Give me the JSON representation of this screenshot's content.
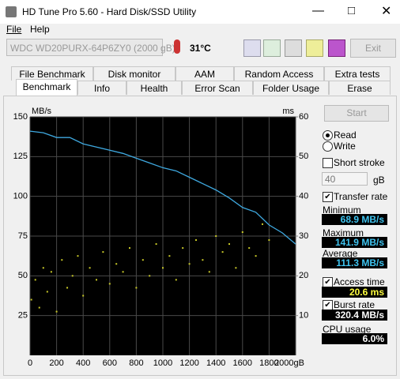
{
  "window": {
    "title": "HD Tune Pro 5.60 - Hard Disk/SSD Utility",
    "menu": [
      "File",
      "Help"
    ]
  },
  "toolbar": {
    "drive": "WDC WD20PURX-64P6ZY0 (2000 gB)",
    "temperature": "31°C",
    "exit": "Exit"
  },
  "tabs": {
    "row1": [
      "File Benchmark",
      "Disk monitor",
      "AAM",
      "Random Access",
      "Extra tests"
    ],
    "row2": [
      "Benchmark",
      "Info",
      "Health",
      "Error Scan",
      "Folder Usage",
      "Erase"
    ],
    "active": 0
  },
  "side": {
    "start": "Start",
    "radios": [
      {
        "label": "Read",
        "checked": true
      },
      {
        "label": "Write",
        "checked": false
      }
    ],
    "short_stroke": {
      "label": "Short stroke",
      "checked": false,
      "value": "40",
      "unit": "gB"
    },
    "transfer_rate": {
      "label": "Transfer rate",
      "checked": true
    },
    "stats": [
      {
        "label": "Minimum",
        "value": "68.9 MB/s"
      },
      {
        "label": "Maximum",
        "value": "141.9 MB/s"
      },
      {
        "label": "Average",
        "value": "111.3 MB/s"
      }
    ],
    "access_time": {
      "label": "Access time",
      "checked": true,
      "value": "20.6 ms"
    },
    "burst_rate": {
      "label": "Burst rate",
      "checked": true,
      "value": "320.4 MB/s"
    },
    "cpu": {
      "label": "CPU usage",
      "value": "6.0%"
    }
  },
  "chart_data": {
    "type": "line",
    "y_label": "MB/s",
    "y2_label": "ms",
    "xlim": [
      0,
      2000
    ],
    "xticks": [
      0,
      200,
      400,
      600,
      800,
      1000,
      1200,
      1400,
      1600,
      1800,
      {
        "value": 2000,
        "label": "2000gB"
      }
    ],
    "ylim": [
      0,
      150
    ],
    "yticks": [
      25,
      50,
      75,
      100,
      125,
      150
    ],
    "y2lim": [
      0,
      60
    ],
    "y2ticks": [
      10,
      20,
      30,
      40,
      50,
      60
    ],
    "grid": true,
    "series": [
      {
        "type": "line",
        "color": "#3fa9e0",
        "x": [
          0,
          100,
          200,
          300,
          400,
          500,
          600,
          700,
          800,
          900,
          1000,
          1100,
          1200,
          1300,
          1400,
          1500,
          1600,
          1700,
          1800,
          1900,
          2000
        ],
        "values": [
          141,
          140,
          137,
          137,
          133,
          131,
          129,
          127,
          124,
          121,
          118,
          116,
          112,
          108,
          104,
          99,
          93,
          90,
          82,
          77,
          70
        ]
      },
      {
        "type": "scatter",
        "axis": "y2",
        "color": "#c8c828",
        "x": [
          10,
          40,
          70,
          100,
          130,
          160,
          200,
          240,
          280,
          320,
          360,
          400,
          450,
          500,
          550,
          600,
          650,
          700,
          750,
          800,
          850,
          900,
          950,
          1000,
          1050,
          1100,
          1150,
          1200,
          1250,
          1300,
          1350,
          1400,
          1450,
          1500,
          1550,
          1600,
          1650,
          1700,
          1750,
          1800
        ],
        "values": [
          14,
          19,
          12,
          22,
          16,
          21,
          11,
          24,
          17,
          20,
          25,
          15,
          22,
          19,
          26,
          18,
          23,
          21,
          27,
          17,
          24,
          20,
          28,
          22,
          25,
          19,
          27,
          23,
          29,
          24,
          21,
          30,
          26,
          28,
          22,
          31,
          27,
          25,
          33,
          29
        ]
      }
    ]
  }
}
